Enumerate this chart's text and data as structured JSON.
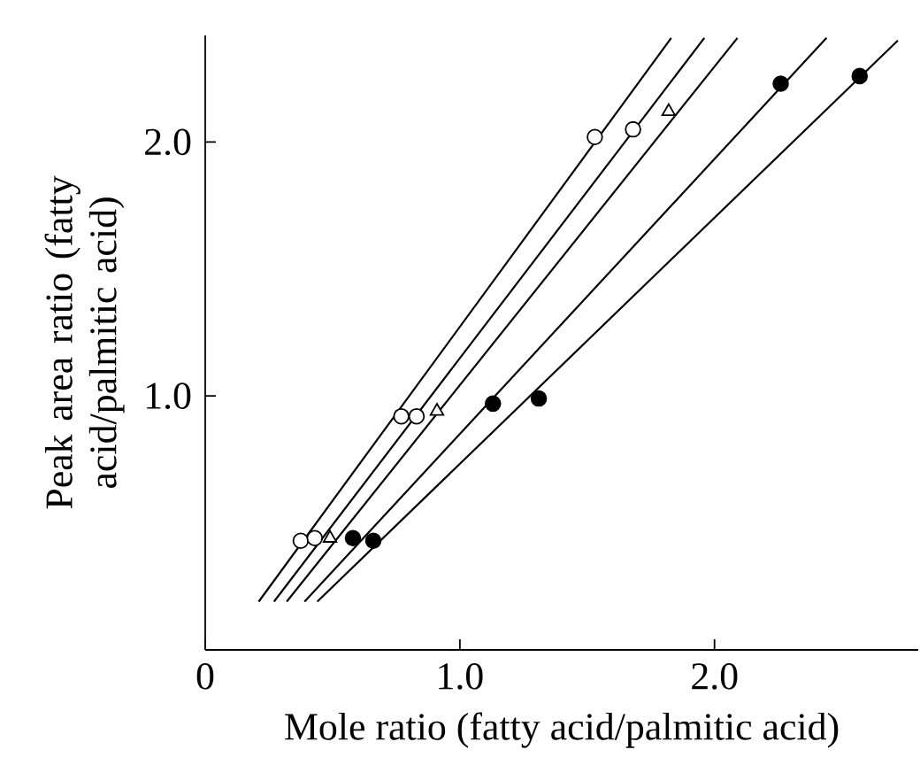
{
  "chart_data": {
    "type": "scatter",
    "xlabel": "Mole ratio (fatty acid/palmitic acid)",
    "ylabel": "Peak area ratio (fatty acid/palmitic acid)",
    "xlim": [
      0,
      2.8
    ],
    "ylim": [
      0,
      2.42
    ],
    "xticks": [
      0,
      {
        "value": 1,
        "label": "1.0"
      },
      {
        "value": 2,
        "label": "2.0"
      }
    ],
    "yticks": [
      {
        "value": 1,
        "label": "1.0"
      },
      {
        "value": 2,
        "label": "2.0"
      }
    ],
    "grid": false,
    "series": [
      {
        "type": "line",
        "marker": "none",
        "color": "#000000",
        "x": [
          0.21,
          1.83
        ],
        "values": [
          0.19,
          2.41
        ]
      },
      {
        "type": "line",
        "marker": "none",
        "color": "#000000",
        "x": [
          0.27,
          1.96
        ],
        "values": [
          0.19,
          2.41
        ]
      },
      {
        "type": "line",
        "marker": "none",
        "color": "#000000",
        "x": [
          0.32,
          2.09
        ],
        "values": [
          0.19,
          2.41
        ]
      },
      {
        "type": "line",
        "marker": "none",
        "color": "#000000",
        "x": [
          0.39,
          2.44
        ],
        "values": [
          0.19,
          2.41
        ]
      },
      {
        "type": "line",
        "marker": "none",
        "color": "#000000",
        "x": [
          0.44,
          2.72
        ],
        "values": [
          0.19,
          2.4
        ]
      },
      {
        "marker": "circle",
        "color": "#ffffff",
        "x": [
          0.375,
          0.77,
          1.53
        ],
        "values": [
          0.43,
          0.92,
          2.02
        ]
      },
      {
        "marker": "circle",
        "color": "#ffffff",
        "x": [
          0.43,
          0.83,
          1.68
        ],
        "values": [
          0.44,
          0.92,
          2.05
        ]
      },
      {
        "marker": "triangle",
        "color": "#ffffff",
        "x": [
          0.49,
          0.91,
          1.82
        ],
        "values": [
          0.44,
          0.94,
          2.12
        ]
      },
      {
        "marker": "circle",
        "color": "#000000",
        "x": [
          0.58,
          1.13,
          2.26
        ],
        "values": [
          0.44,
          0.97,
          2.23
        ]
      },
      {
        "marker": "circle",
        "color": "#000000",
        "x": [
          0.66,
          1.31,
          2.57
        ],
        "values": [
          0.43,
          0.99,
          2.26
        ]
      }
    ]
  }
}
